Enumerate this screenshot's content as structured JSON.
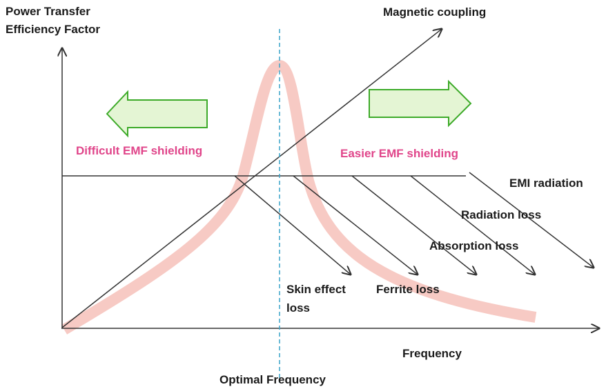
{
  "title": [
    "Power Transfer",
    "Efficiency Factor"
  ],
  "labels": {
    "magnetic_coupling": "Magnetic coupling",
    "difficult": "Difficult EMF shielding",
    "easier": "Easier EMF shielding",
    "emi": "EMI radiation",
    "radiation": "Radiation loss",
    "absorption": "Absorption loss",
    "skin": [
      "Skin effect",
      "loss"
    ],
    "ferrite": "Ferrite loss",
    "frequency": "Frequency",
    "optimal": "Optimal Frequency"
  }
}
